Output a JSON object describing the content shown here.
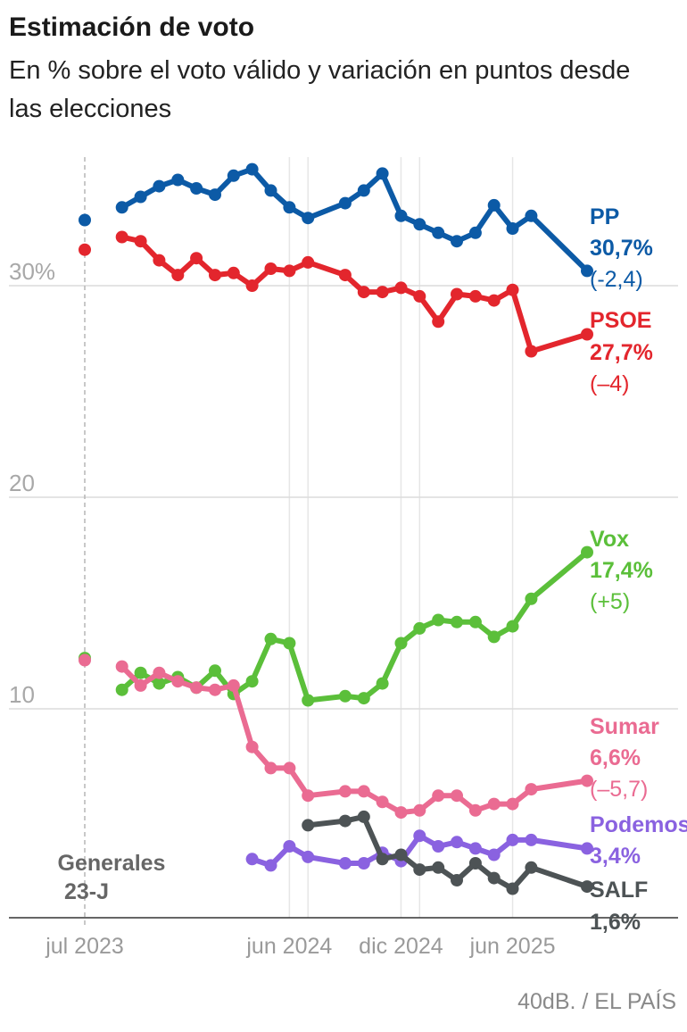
{
  "title": "Estimación de voto",
  "subtitle": "En % sobre el voto válido y variación en puntos desde las elecciones",
  "source": "40dB. / EL PAÍS",
  "chart_data": {
    "type": "line",
    "x_range": [
      0,
      24.5
    ],
    "ylim": [
      0,
      36
    ],
    "grid": true,
    "x_ticks": [
      {
        "x": 0,
        "label": "jul 2023"
      },
      {
        "x": 11,
        "label": "jun 2024"
      },
      {
        "x": 17,
        "label": "dic 2024"
      },
      {
        "x": 23,
        "label": "jun 2025"
      }
    ],
    "y_ticks": [
      {
        "y": 10,
        "label": "10"
      },
      {
        "y": 20,
        "label": "20"
      },
      {
        "y": 30,
        "label": "30%"
      }
    ],
    "grid_extra": [
      0,
      12,
      18
    ],
    "reference": {
      "x": 0,
      "label_lines": [
        "Generales",
        "23-J"
      ]
    },
    "series": [
      {
        "name": "PP",
        "color": "#0c5aa6",
        "value_label": "30,7%",
        "change_label": "(-2,4)",
        "election": 33.1,
        "points": [
          [
            2,
            33.7
          ],
          [
            3,
            34.2
          ],
          [
            4,
            34.7
          ],
          [
            5,
            35.0
          ],
          [
            6,
            34.6
          ],
          [
            7,
            34.3
          ],
          [
            8,
            35.2
          ],
          [
            9,
            35.5
          ],
          [
            10,
            34.5
          ],
          [
            11,
            33.7
          ],
          [
            12,
            33.2
          ],
          [
            14,
            33.9
          ],
          [
            15,
            34.5
          ],
          [
            16,
            35.3
          ],
          [
            17,
            33.3
          ],
          [
            18,
            32.9
          ],
          [
            19,
            32.5
          ],
          [
            20,
            32.1
          ],
          [
            21,
            32.5
          ],
          [
            22,
            33.8
          ],
          [
            23,
            32.7
          ],
          [
            24,
            33.3
          ],
          [
            27,
            30.7
          ]
        ]
      },
      {
        "name": "PSOE",
        "color": "#e3262d",
        "value_label": "27,7%",
        "change_label": "(–4)",
        "election": 31.7,
        "points": [
          [
            2,
            32.3
          ],
          [
            3,
            32.1
          ],
          [
            4,
            31.2
          ],
          [
            5,
            30.5
          ],
          [
            6,
            31.3
          ],
          [
            7,
            30.5
          ],
          [
            8,
            30.6
          ],
          [
            9,
            30.0
          ],
          [
            10,
            30.8
          ],
          [
            11,
            30.7
          ],
          [
            12,
            31.1
          ],
          [
            14,
            30.5
          ],
          [
            15,
            29.7
          ],
          [
            16,
            29.7
          ],
          [
            17,
            29.9
          ],
          [
            18,
            29.5
          ],
          [
            19,
            28.3
          ],
          [
            20,
            29.6
          ],
          [
            21,
            29.5
          ],
          [
            22,
            29.3
          ],
          [
            23,
            29.8
          ],
          [
            24,
            26.9
          ],
          [
            27,
            27.7
          ]
        ]
      },
      {
        "name": "Vox",
        "color": "#5bbf3a",
        "value_label": "17,4%",
        "change_label": "(+5)",
        "election": 12.4,
        "points": [
          [
            2,
            10.9
          ],
          [
            3,
            11.7
          ],
          [
            4,
            11.2
          ],
          [
            5,
            11.5
          ],
          [
            6,
            11.0
          ],
          [
            7,
            11.8
          ],
          [
            8,
            10.7
          ],
          [
            9,
            11.3
          ],
          [
            10,
            13.3
          ],
          [
            11,
            13.1
          ],
          [
            12,
            10.4
          ],
          [
            14,
            10.6
          ],
          [
            15,
            10.5
          ],
          [
            16,
            11.2
          ],
          [
            17,
            13.1
          ],
          [
            18,
            13.8
          ],
          [
            19,
            14.2
          ],
          [
            20,
            14.1
          ],
          [
            21,
            14.1
          ],
          [
            22,
            13.4
          ],
          [
            23,
            13.9
          ],
          [
            24,
            15.2
          ],
          [
            27,
            17.4
          ]
        ]
      },
      {
        "name": "Sumar",
        "color": "#ea6b92",
        "value_label": "6,6%",
        "change_label": "(–5,7)",
        "election": 12.3,
        "points": [
          [
            2,
            12.0
          ],
          [
            3,
            11.1
          ],
          [
            4,
            11.7
          ],
          [
            5,
            11.3
          ],
          [
            6,
            11.0
          ],
          [
            7,
            10.9
          ],
          [
            8,
            11.1
          ],
          [
            9,
            8.2
          ],
          [
            10,
            7.2
          ],
          [
            11,
            7.2
          ],
          [
            12,
            5.9
          ],
          [
            14,
            6.1
          ],
          [
            15,
            6.1
          ],
          [
            16,
            5.6
          ],
          [
            17,
            5.1
          ],
          [
            18,
            5.2
          ],
          [
            19,
            5.9
          ],
          [
            20,
            5.9
          ],
          [
            21,
            5.2
          ],
          [
            22,
            5.5
          ],
          [
            23,
            5.5
          ],
          [
            24,
            6.2
          ],
          [
            27,
            6.6
          ]
        ]
      },
      {
        "name": "Podemos",
        "color": "#8a62e0",
        "value_label": "3,4%",
        "change_label": "",
        "election": null,
        "points": [
          [
            9,
            2.9
          ],
          [
            10,
            2.6
          ],
          [
            11,
            3.5
          ],
          [
            12,
            3.0
          ],
          [
            14,
            2.7
          ],
          [
            15,
            2.7
          ],
          [
            16,
            3.2
          ],
          [
            17,
            2.8
          ],
          [
            18,
            4.0
          ],
          [
            19,
            3.5
          ],
          [
            20,
            3.7
          ],
          [
            21,
            3.4
          ],
          [
            22,
            3.1
          ],
          [
            23,
            3.8
          ],
          [
            24,
            3.8
          ],
          [
            27,
            3.4
          ]
        ]
      },
      {
        "name": "SALF",
        "color": "#4d5355",
        "value_label": "1,6%",
        "change_label": "",
        "election": null,
        "points": [
          [
            12,
            4.5
          ],
          [
            14,
            4.7
          ],
          [
            15,
            4.9
          ],
          [
            16,
            2.9
          ],
          [
            17,
            3.1
          ],
          [
            18,
            2.4
          ],
          [
            19,
            2.5
          ],
          [
            20,
            1.9
          ],
          [
            21,
            2.7
          ],
          [
            22,
            2.0
          ],
          [
            23,
            1.5
          ],
          [
            24,
            2.5
          ],
          [
            27,
            1.6
          ]
        ]
      }
    ]
  }
}
